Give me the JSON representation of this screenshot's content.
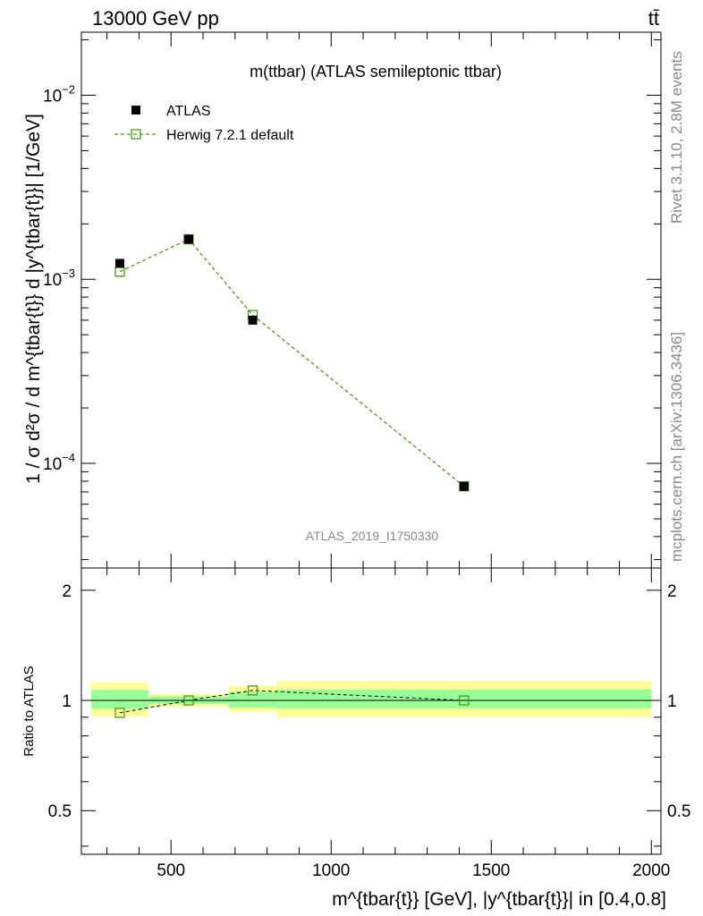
{
  "header": {
    "left": "13000 GeV pp",
    "right": "tt̄"
  },
  "side": {
    "rivet": "Rivet 3.1.10,  2.8M events",
    "mcplots": "mcplots.cern.ch [arXiv:1306.3436]"
  },
  "watermark": "ATLAS_2019_I1750330",
  "colors": {
    "data": "#000000",
    "mc": "#4a9a1a",
    "band_inner": "#99ff99",
    "band_outer": "#ffff99"
  },
  "chart_data": [
    {
      "type": "scatter",
      "title": "m(ttbar) (ATLAS semileptonic ttbar)",
      "ylabel": "1 / σ d²σ / d m^{tbar{t}} d |y^{tbar{t}}| [1/GeV]",
      "xlim": [
        220,
        2030
      ],
      "ylim": [
        2.7e-05,
        0.022
      ],
      "yscale": "log",
      "ytick_labels": [
        "10^-2",
        "10^-3",
        "10^-4"
      ],
      "legend_position": "top-left",
      "series": [
        {
          "name": "ATLAS",
          "marker": "filled-square",
          "x": [
            340,
            555,
            755,
            1415
          ],
          "y": [
            0.00122,
            0.00165,
            0.0006,
            7.5e-05
          ]
        },
        {
          "name": "Herwig 7.2.1 default",
          "marker": "open-square",
          "line": "dashed",
          "x": [
            340,
            555,
            755,
            1415
          ],
          "y": [
            0.0011,
            0.00165,
            0.00064,
            7.5e-05
          ]
        }
      ]
    },
    {
      "type": "line",
      "title": "",
      "xlabel": "m^{tbar{t}} [GeV], |y^{tbar{t}}| in [0.4,0.8]",
      "ylabel": "Ratio to ATLAS",
      "xlim": [
        220,
        2030
      ],
      "ylim": [
        0.38,
        2.3
      ],
      "yscale": "log",
      "x_ticks": [
        500,
        1000,
        1500,
        2000
      ],
      "y_ticks": [
        0.5,
        1,
        2
      ],
      "bands": [
        {
          "x0": 250,
          "x1": 430,
          "inner": [
            0.948,
            1.068
          ],
          "outer": [
            0.905,
            1.118
          ]
        },
        {
          "x0": 430,
          "x1": 680,
          "inner": [
            0.978,
            1.025
          ],
          "outer": [
            0.962,
            1.042
          ]
        },
        {
          "x0": 680,
          "x1": 830,
          "inner": [
            0.955,
            1.055
          ],
          "outer": [
            0.93,
            1.095
          ]
        },
        {
          "x0": 830,
          "x1": 2000,
          "inner": [
            0.95,
            1.07
          ],
          "outer": [
            0.9,
            1.13
          ]
        }
      ],
      "ratio": {
        "x": [
          340,
          555,
          755,
          1415
        ],
        "y": [
          0.925,
          1.0,
          1.065,
          1.0
        ]
      }
    }
  ]
}
